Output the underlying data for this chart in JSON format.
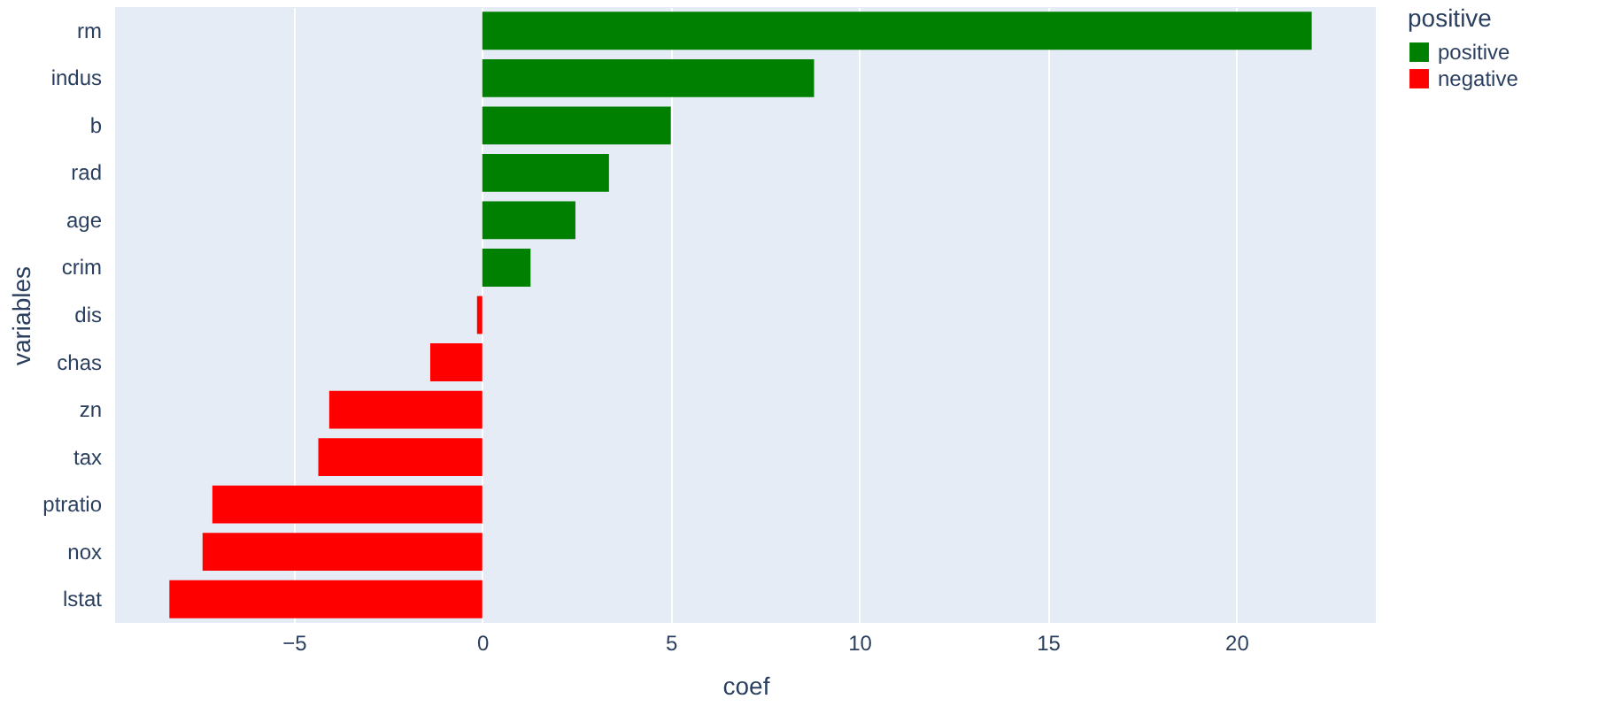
{
  "chart_data": {
    "type": "bar",
    "orientation": "horizontal",
    "xlabel": "coef",
    "ylabel": "variables",
    "legend_title": "positive",
    "categories": [
      "rm",
      "indus",
      "b",
      "rad",
      "age",
      "crim",
      "dis",
      "chas",
      "zn",
      "tax",
      "ptratio",
      "nox",
      "lstat"
    ],
    "series": [
      {
        "name": "positive",
        "color": "#008000",
        "values": [
          22.0,
          8.8,
          5.0,
          3.36,
          2.47,
          1.28,
          null,
          null,
          null,
          null,
          null,
          null,
          null
        ]
      },
      {
        "name": "negative",
        "color": "#ff0000",
        "values": [
          null,
          null,
          null,
          null,
          null,
          null,
          -0.14,
          -1.38,
          -4.06,
          -4.35,
          -7.16,
          -7.42,
          -8.3
        ]
      }
    ],
    "xlim": [
      -9.74,
      23.7
    ],
    "xticks": [
      -5,
      0,
      5,
      10,
      15,
      20
    ],
    "grid": "x",
    "legend": "top right"
  }
}
